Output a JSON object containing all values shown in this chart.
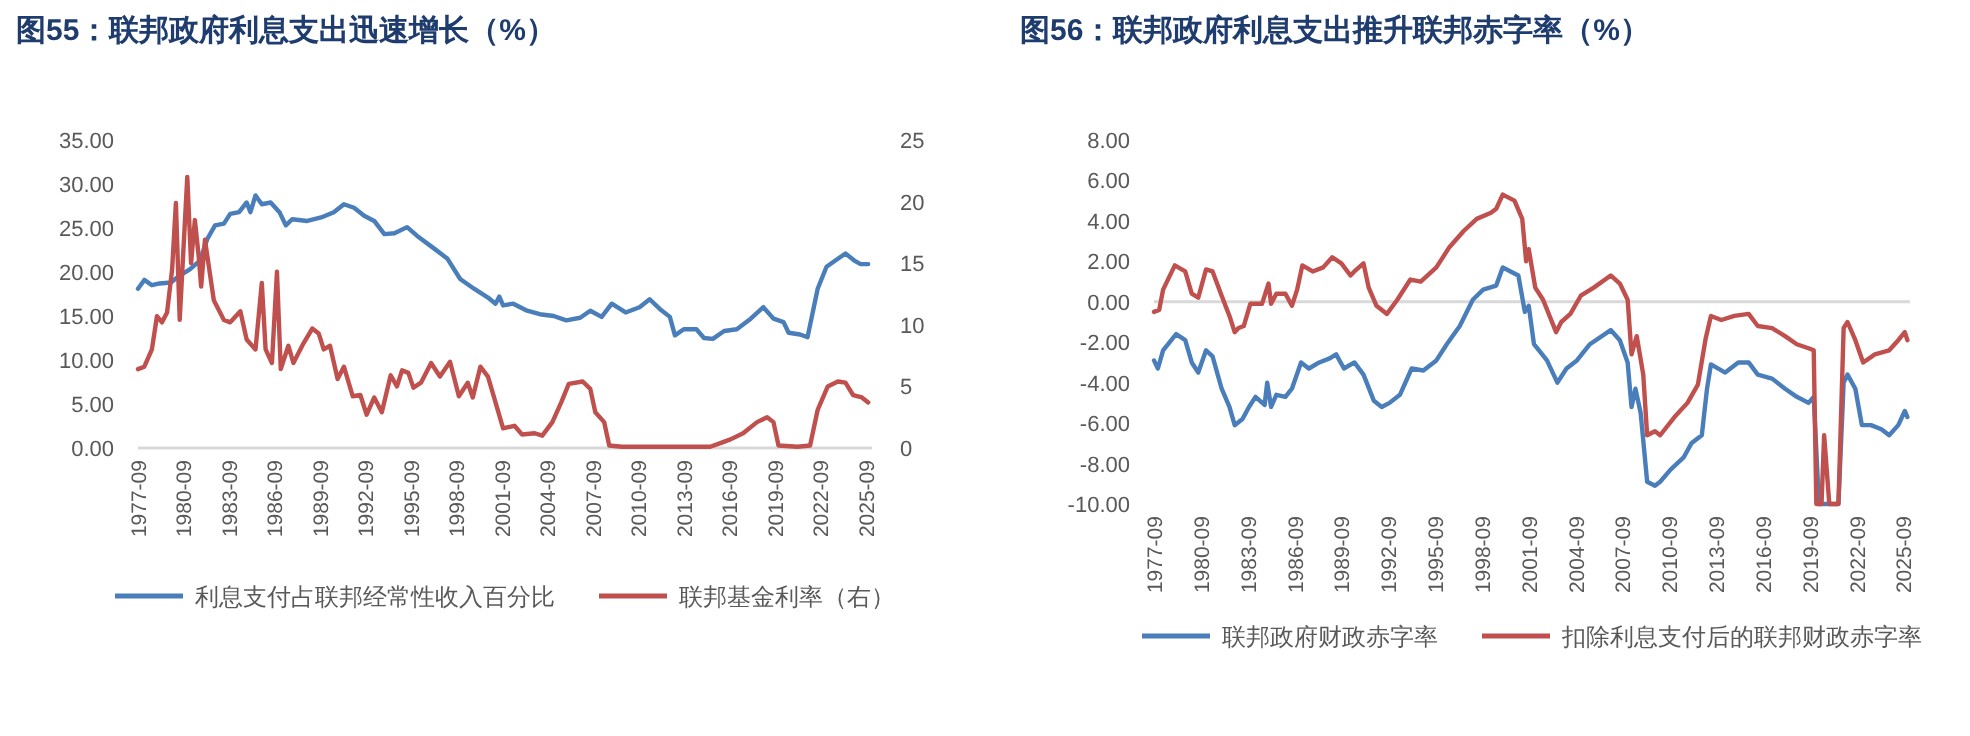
{
  "chart_data": [
    {
      "type": "line",
      "title": "图55：联邦政府利息支出迅速增长（%）",
      "legend": "bottom",
      "xlim": [
        "1977-09",
        "2026-02"
      ],
      "xticks": [
        "1977-09",
        "1980-09",
        "1983-09",
        "1986-09",
        "1989-09",
        "1992-09",
        "1995-09",
        "1998-09",
        "2001-09",
        "2004-09",
        "2007-09",
        "2010-09",
        "2013-09",
        "2016-09",
        "2019-09",
        "2022-09",
        "2025-09"
      ],
      "ylim": [
        0,
        35
      ],
      "yticks": [
        {
          "value": 0,
          "label": "0.00"
        },
        {
          "value": 5,
          "label": "5.00"
        },
        {
          "value": 10,
          "label": "10.00"
        },
        {
          "value": 15,
          "label": "15.00"
        },
        {
          "value": 20,
          "label": "20.00"
        },
        {
          "value": 25,
          "label": "25.00"
        },
        {
          "value": 30,
          "label": "30.00"
        },
        {
          "value": 35,
          "label": "35.00"
        }
      ],
      "y2lim": [
        0,
        25
      ],
      "y2ticks": [
        0,
        5,
        10,
        15,
        20,
        25
      ],
      "series": [
        {
          "name": "利息支付占联邦经常性收入百分比",
          "color": "#4a7ebb",
          "x": [
            "1977-09",
            "1978-02",
            "1978-08",
            "1979-02",
            "1979-11",
            "1980-06",
            "1981-02",
            "1981-10",
            "1982-04",
            "1982-10",
            "1983-05",
            "1983-10",
            "1984-05",
            "1984-11",
            "1985-02",
            "1985-06",
            "1985-11",
            "1986-06",
            "1987-01",
            "1987-06",
            "1987-11",
            "1988-11",
            "1989-10",
            "1990-08",
            "1991-04",
            "1991-12",
            "1992-08",
            "1993-04",
            "1993-12",
            "1994-08",
            "1995-06",
            "1996-02",
            "1997-04",
            "1998-02",
            "1998-12",
            "1999-11",
            "2000-10",
            "2001-04",
            "2001-07",
            "2001-10",
            "2002-06",
            "2003-05",
            "2004-03",
            "2005-02",
            "2005-12",
            "2006-11",
            "2007-07",
            "2008-04",
            "2008-12",
            "2009-11",
            "2010-10",
            "2011-06",
            "2012-02",
            "2012-10",
            "2013-02",
            "2013-09",
            "2014-07",
            "2015-01",
            "2015-08",
            "2016-05",
            "2017-03",
            "2018-02",
            "2018-12",
            "2019-08",
            "2020-04",
            "2020-08",
            "2021-05",
            "2021-11",
            "2022-07",
            "2023-02",
            "2023-11",
            "2024-05",
            "2024-12",
            "2025-05",
            "2025-11"
          ],
          "values": [
            18.1,
            19.1,
            18.5,
            18.7,
            18.8,
            19.6,
            20.3,
            21.3,
            23.8,
            25.3,
            25.5,
            26.6,
            26.8,
            27.9,
            26.8,
            28.7,
            27.7,
            27.9,
            26.8,
            25.3,
            26.0,
            25.8,
            26.2,
            26.8,
            27.7,
            27.3,
            26.4,
            25.8,
            24.3,
            24.4,
            25.1,
            24.1,
            22.6,
            21.5,
            19.2,
            18.1,
            17.1,
            16.4,
            17.2,
            16.2,
            16.4,
            15.6,
            15.2,
            15.0,
            14.5,
            14.8,
            15.6,
            14.9,
            16.4,
            15.4,
            16.0,
            16.9,
            15.8,
            14.9,
            12.8,
            13.5,
            13.5,
            12.5,
            12.4,
            13.3,
            13.5,
            14.7,
            16.0,
            14.7,
            14.3,
            13.1,
            12.9,
            12.6,
            18.1,
            20.6,
            21.5,
            22.1,
            21.3,
            20.9,
            20.9
          ]
        },
        {
          "name": "联邦基金利率（右）",
          "color": "#c0504d",
          "axis": "y2",
          "x": [
            "1977-09",
            "1978-02",
            "1978-08",
            "1978-12",
            "1979-04",
            "1979-08",
            "1979-12",
            "1980-03",
            "1980-06",
            "1980-12",
            "1981-03",
            "1981-06",
            "1981-09",
            "1981-11",
            "1982-02",
            "1982-09",
            "1983-05",
            "1983-10",
            "1984-06",
            "1984-11",
            "1985-06",
            "1985-11",
            "1986-02",
            "1986-07",
            "1986-11",
            "1987-02",
            "1987-08",
            "1987-12",
            "1988-08",
            "1989-03",
            "1989-08",
            "1989-12",
            "1990-05",
            "1990-11",
            "1991-04",
            "1991-11",
            "1992-05",
            "1992-10",
            "1993-04",
            "1993-10",
            "1994-05",
            "1994-10",
            "1995-02",
            "1995-07",
            "1995-11",
            "1996-05",
            "1997-01",
            "1997-08",
            "1998-04",
            "1998-11",
            "1999-06",
            "1999-10",
            "2000-04",
            "2000-10",
            "2001-04",
            "2001-10",
            "2002-07",
            "2003-01",
            "2003-11",
            "2004-05",
            "2005-01",
            "2005-08",
            "2006-02",
            "2007-01",
            "2007-07",
            "2007-11",
            "2008-06",
            "2008-10",
            "2009-08",
            "2012-05",
            "2015-06",
            "2016-02",
            "2016-10",
            "2017-08",
            "2018-07",
            "2019-03",
            "2019-08",
            "2019-12",
            "2021-03",
            "2022-01",
            "2022-07",
            "2023-03",
            "2023-11",
            "2024-05",
            "2024-11",
            "2025-06",
            "2025-11"
          ],
          "values": [
            6.4,
            6.6,
            8.0,
            10.7,
            10.2,
            11.0,
            14.5,
            19.9,
            10.4,
            22.0,
            15.0,
            18.5,
            15.6,
            13.1,
            16.9,
            12.0,
            10.4,
            10.2,
            11.1,
            8.8,
            8.0,
            13.4,
            8.0,
            6.9,
            14.3,
            6.4,
            8.3,
            6.9,
            8.5,
            9.7,
            9.3,
            8.0,
            8.3,
            5.6,
            6.6,
            4.2,
            4.3,
            2.7,
            4.1,
            2.9,
            5.9,
            5.0,
            6.3,
            6.1,
            4.9,
            5.3,
            6.9,
            5.8,
            7.0,
            4.2,
            5.3,
            4.1,
            6.6,
            5.8,
            3.7,
            1.6,
            1.8,
            1.1,
            1.2,
            1.0,
            2.1,
            3.7,
            5.2,
            5.4,
            4.8,
            2.9,
            2.1,
            0.2,
            0.1,
            0.1,
            0.1,
            0.4,
            0.7,
            1.2,
            2.1,
            2.5,
            2.1,
            0.2,
            0.1,
            0.2,
            3.1,
            5.0,
            5.4,
            5.3,
            4.3,
            4.1,
            3.7
          ]
        }
      ]
    },
    {
      "type": "line",
      "title": "图56：联邦政府利息支出推升联邦赤字率（%）",
      "legend": "bottom",
      "xlim": [
        "1977-09",
        "2026-02"
      ],
      "xticks": [
        "1977-09",
        "1980-09",
        "1983-09",
        "1986-09",
        "1989-09",
        "1992-09",
        "1995-09",
        "1998-09",
        "2001-09",
        "2004-09",
        "2007-09",
        "2010-09",
        "2013-09",
        "2016-09",
        "2019-09",
        "2022-09",
        "2025-09"
      ],
      "ylim": [
        -10,
        8
      ],
      "yticks": [
        {
          "value": -10,
          "label": "-10.00"
        },
        {
          "value": -8,
          "label": "-8.00"
        },
        {
          "value": -6,
          "label": "-6.00"
        },
        {
          "value": -4,
          "label": "-4.00"
        },
        {
          "value": -2,
          "label": "-2.00"
        },
        {
          "value": 0,
          "label": "0.00"
        },
        {
          "value": 2,
          "label": "2.00"
        },
        {
          "value": 4,
          "label": "4.00"
        },
        {
          "value": 6,
          "label": "6.00"
        },
        {
          "value": 8,
          "label": "8.00"
        }
      ],
      "series": [
        {
          "name": "联邦政府财政赤字率",
          "color": "#4a7ebb",
          "x": [
            "1977-09",
            "1977-12",
            "1978-04",
            "1979-02",
            "1979-09",
            "1980-02",
            "1980-07",
            "1981-01",
            "1981-06",
            "1982-01",
            "1982-07",
            "1982-11",
            "1983-05",
            "1983-10",
            "1984-03",
            "1984-10",
            "1984-12",
            "1985-03",
            "1985-07",
            "1986-02",
            "1986-07",
            "1987-02",
            "1987-08",
            "1988-04",
            "1988-12",
            "1989-05",
            "1989-11",
            "1990-07",
            "1991-02",
            "1991-10",
            "1992-04",
            "1992-10",
            "1993-06",
            "1994-03",
            "1994-12",
            "1995-10",
            "1996-06",
            "1997-04",
            "1998-02",
            "1998-10",
            "1999-08",
            "2000-01",
            "2000-07",
            "2001-01",
            "2001-06",
            "2001-09",
            "2002-01",
            "2002-11",
            "2003-07",
            "2004-02",
            "2004-10",
            "2005-08",
            "2006-12",
            "2007-07",
            "2008-01",
            "2008-04",
            "2008-07",
            "2008-11",
            "2009-04",
            "2009-10",
            "2010-02",
            "2010-10",
            "2011-08",
            "2012-02",
            "2012-10",
            "2013-02",
            "2013-05",
            "2014-04",
            "2015-02",
            "2015-10",
            "2016-05",
            "2017-04",
            "2018-02",
            "2018-11",
            "2019-08",
            "2019-12",
            "2020-04",
            "2021-07",
            "2021-11",
            "2022-02",
            "2022-08",
            "2023-01",
            "2023-08",
            "2024-04",
            "2024-10",
            "2025-05",
            "2025-10",
            "2025-12"
          ],
          "values": [
            -2.9,
            -3.3,
            -2.4,
            -1.6,
            -1.9,
            -3.0,
            -3.5,
            -2.4,
            -2.7,
            -4.3,
            -5.2,
            -6.1,
            -5.8,
            -5.2,
            -4.7,
            -5.1,
            -4.0,
            -5.2,
            -4.6,
            -4.7,
            -4.3,
            -3.0,
            -3.3,
            -3.0,
            -2.8,
            -2.6,
            -3.3,
            -3.0,
            -3.6,
            -4.9,
            -5.2,
            -5.0,
            -4.6,
            -3.3,
            -3.4,
            -2.9,
            -2.1,
            -1.2,
            0.1,
            0.6,
            0.8,
            1.7,
            1.5,
            1.3,
            -0.5,
            -0.2,
            -2.1,
            -2.9,
            -4.0,
            -3.3,
            -2.9,
            -2.1,
            -1.4,
            -1.9,
            -3.0,
            -5.2,
            -4.3,
            -5.5,
            -8.9,
            -9.1,
            -8.9,
            -8.3,
            -7.7,
            -7.0,
            -6.6,
            -4.3,
            -3.1,
            -3.5,
            -3.0,
            -3.0,
            -3.6,
            -3.8,
            -4.3,
            -4.7,
            -5.0,
            -4.7,
            -10,
            -10,
            -4.0,
            -3.6,
            -4.3,
            -6.1,
            -6.1,
            -6.3,
            -6.6,
            -6.1,
            -5.4,
            -5.7
          ]
        },
        {
          "name": "扣除利息支付后的联邦财政赤字率",
          "color": "#c0504d",
          "x": [
            "1977-09",
            "1978-01",
            "1978-04",
            "1979-01",
            "1979-09",
            "1980-02",
            "1980-07",
            "1981-01",
            "1981-06",
            "1982-01",
            "1982-07",
            "1982-11",
            "1983-02",
            "1983-06",
            "1983-11",
            "1984-08",
            "1985-01",
            "1985-03",
            "1985-07",
            "1986-02",
            "1986-07",
            "1986-11",
            "1987-03",
            "1987-11",
            "1988-07",
            "1989-02",
            "1989-09",
            "1990-04",
            "1990-07",
            "1991-02",
            "1991-06",
            "1991-12",
            "1992-08",
            "1993-04",
            "1994-02",
            "1994-10",
            "1995-10",
            "1996-08",
            "1997-07",
            "1998-05",
            "1999-04",
            "1999-08",
            "2000-01",
            "2000-10",
            "2001-04",
            "2001-07",
            "2001-09",
            "2002-02",
            "2002-08",
            "2003-06",
            "2003-10",
            "2004-05",
            "2005-01",
            "2005-11",
            "2006-12",
            "2007-07",
            "2008-01",
            "2008-04",
            "2008-08",
            "2009-01",
            "2009-04",
            "2009-10",
            "2010-02",
            "2011-01",
            "2011-11",
            "2012-07",
            "2013-01",
            "2013-05",
            "2014-01",
            "2014-11",
            "2015-10",
            "2016-05",
            "2017-04",
            "2018-02",
            "2018-11",
            "2019-08",
            "2019-12",
            "2020-02",
            "2020-06",
            "2020-08",
            "2020-12",
            "2021-07",
            "2021-11",
            "2022-02",
            "2022-08",
            "2023-02",
            "2023-11",
            "2024-10",
            "2025-05",
            "2025-10",
            "2025-12"
          ],
          "values": [
            -0.5,
            -0.4,
            0.6,
            1.8,
            1.5,
            0.4,
            0.2,
            1.6,
            1.5,
            0.3,
            -0.7,
            -1.5,
            -1.3,
            -1.2,
            -0.1,
            -0.1,
            0.9,
            -0.1,
            0.4,
            0.4,
            -0.2,
            0.6,
            1.8,
            1.5,
            1.7,
            2.2,
            1.9,
            1.3,
            1.5,
            1.9,
            0.7,
            -0.2,
            -0.6,
            0.1,
            1.1,
            1.0,
            1.7,
            2.7,
            3.5,
            4.1,
            4.4,
            4.6,
            5.3,
            5.0,
            4.1,
            2.0,
            2.6,
            0.7,
            0.1,
            -1.5,
            -1.0,
            -0.6,
            0.3,
            0.7,
            1.3,
            0.9,
            0.1,
            -2.6,
            -1.7,
            -3.6,
            -6.6,
            -6.4,
            -6.6,
            -5.7,
            -5.0,
            -4.1,
            -1.8,
            -0.7,
            -0.9,
            -0.7,
            -0.6,
            -1.2,
            -1.3,
            -1.7,
            -2.1,
            -2.3,
            -2.4,
            -10,
            -10,
            -6.6,
            -10,
            -10,
            -1.3,
            -1.0,
            -1.9,
            -3.0,
            -2.6,
            -2.4,
            -1.9,
            -1.5,
            -1.9
          ]
        }
      ]
    }
  ]
}
